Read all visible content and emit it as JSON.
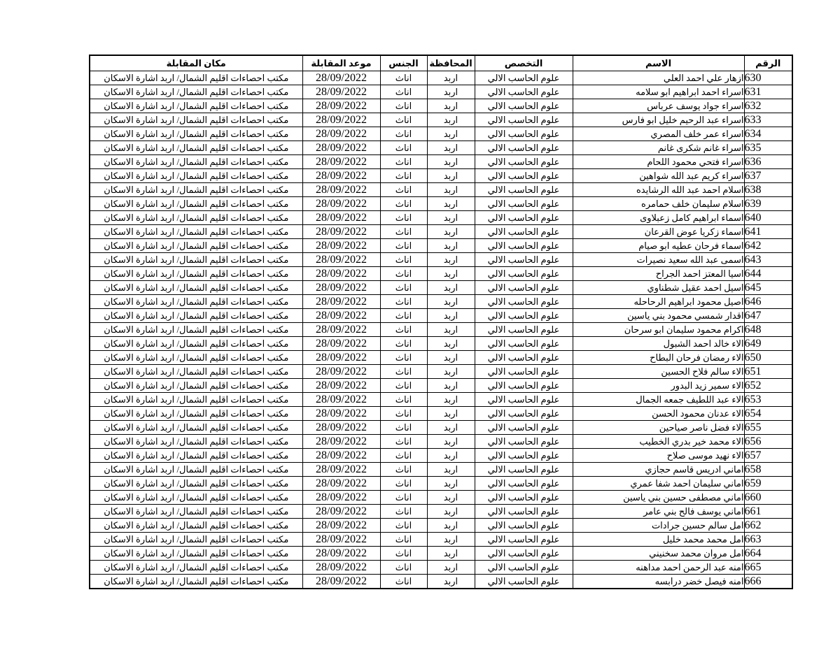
{
  "table": {
    "headers": [
      "الرقم",
      "الاسم",
      "التخصص",
      "المحافظة",
      "الجنس",
      "موعد المقابلة",
      "مكان المقابلة"
    ],
    "common": {
      "specialization": "علوم الحاسب الالي",
      "governorate": "اربد",
      "gender": "اناث",
      "interview_date": "28/09/2022",
      "interview_location": "مكتب احصاءات اقليم الشمال/ اربد اشارة الاسكان"
    },
    "rows": [
      [
        "630",
        "ازهار علي احمد العلي",
        "علوم الحاسب الالي",
        "اربد",
        "اناث",
        "28/09/2022",
        "مكتب احصاءات اقليم الشمال/ اربد اشارة الاسكان"
      ],
      [
        "631",
        "اسراء احمد ابراهيم ابو سلامه",
        "علوم الحاسب الالي",
        "اربد",
        "اناث",
        "28/09/2022",
        "مكتب احصاءات اقليم الشمال/ اربد اشارة الاسكان"
      ],
      [
        "632",
        "اسراء جواد يوسف عرباس",
        "علوم الحاسب الالي",
        "اربد",
        "اناث",
        "28/09/2022",
        "مكتب احصاءات اقليم الشمال/ اربد اشارة الاسكان"
      ],
      [
        "633",
        "اسراء عبد الرحيم خليل ابو فارس",
        "علوم الحاسب الالي",
        "اربد",
        "اناث",
        "28/09/2022",
        "مكتب احصاءات اقليم الشمال/ اربد اشارة الاسكان"
      ],
      [
        "634",
        "اسراء عمر خلف المصري",
        "علوم الحاسب الالي",
        "اربد",
        "اناث",
        "28/09/2022",
        "مكتب احصاءات اقليم الشمال/ اربد اشارة الاسكان"
      ],
      [
        "635",
        "اسراء غانم شكرى غانم",
        "علوم الحاسب الالي",
        "اربد",
        "اناث",
        "28/09/2022",
        "مكتب احصاءات اقليم الشمال/ اربد اشارة الاسكان"
      ],
      [
        "636",
        "اسراء فتحي محمود اللحام",
        "علوم الحاسب الالي",
        "اربد",
        "اناث",
        "28/09/2022",
        "مكتب احصاءات اقليم الشمال/ اربد اشارة الاسكان"
      ],
      [
        "637",
        "اسراء كريم عبد الله شواهين",
        "علوم الحاسب الالي",
        "اربد",
        "اناث",
        "28/09/2022",
        "مكتب احصاءات اقليم الشمال/ اربد اشارة الاسكان"
      ],
      [
        "638",
        "اسلام احمد عبد الله الرشايده",
        "علوم الحاسب الالي",
        "اربد",
        "اناث",
        "28/09/2022",
        "مكتب احصاءات اقليم الشمال/ اربد اشارة الاسكان"
      ],
      [
        "639",
        "اسلام سليمان خلف حمامره",
        "علوم الحاسب الالي",
        "اربد",
        "اناث",
        "28/09/2022",
        "مكتب احصاءات اقليم الشمال/ اربد اشارة الاسكان"
      ],
      [
        "640",
        "اسماء ابراهيم كامل زعبلاوى",
        "علوم الحاسب الالي",
        "اربد",
        "اناث",
        "28/09/2022",
        "مكتب احصاءات اقليم الشمال/ اربد اشارة الاسكان"
      ],
      [
        "641",
        "اسماء زكريا عوض القرعان",
        "علوم الحاسب الالي",
        "اربد",
        "اناث",
        "28/09/2022",
        "مكتب احصاءات اقليم الشمال/ اربد اشارة الاسكان"
      ],
      [
        "642",
        "اسماء فرحان عطيه ابو صيام",
        "علوم الحاسب الالي",
        "اربد",
        "اناث",
        "28/09/2022",
        "مكتب احصاءات اقليم الشمال/ اربد اشارة الاسكان"
      ],
      [
        "643",
        "اسمى عبد الله سعيد نصيرات",
        "علوم الحاسب الالي",
        "اربد",
        "اناث",
        "28/09/2022",
        "مكتب احصاءات اقليم الشمال/ اربد اشارة الاسكان"
      ],
      [
        "644",
        "اسيا المعتز احمد الجراح",
        "علوم الحاسب الالي",
        "اربد",
        "اناث",
        "28/09/2022",
        "مكتب احصاءات اقليم الشمال/ اربد اشارة الاسكان"
      ],
      [
        "645",
        "اسيل احمد عقيل شطناوي",
        "علوم الحاسب الالي",
        "اربد",
        "اناث",
        "28/09/2022",
        "مكتب احصاءات اقليم الشمال/ اربد اشارة الاسكان"
      ],
      [
        "646",
        "اصيل محمود ابراهيم الرحاحله",
        "علوم الحاسب الالي",
        "اربد",
        "اناث",
        "28/09/2022",
        "مكتب احصاءات اقليم الشمال/ اربد اشارة الاسكان"
      ],
      [
        "647",
        "اقدار شمسي محمود بني ياسين",
        "علوم الحاسب الالي",
        "اربد",
        "اناث",
        "28/09/2022",
        "مكتب احصاءات اقليم الشمال/ اربد اشارة الاسكان"
      ],
      [
        "648",
        "اكرام محمود سليمان ابو سرحان",
        "علوم الحاسب الالي",
        "اربد",
        "اناث",
        "28/09/2022",
        "مكتب احصاءات اقليم الشمال/ اربد اشارة الاسكان"
      ],
      [
        "649",
        "الاء خالد احمد الشبول",
        "علوم الحاسب الالي",
        "اربد",
        "اناث",
        "28/09/2022",
        "مكتب احصاءات اقليم الشمال/ اربد اشارة الاسكان"
      ],
      [
        "650",
        "الاء رمضان فرحان البطاح",
        "علوم الحاسب الالي",
        "اربد",
        "اناث",
        "28/09/2022",
        "مكتب احصاءات اقليم الشمال/ اربد اشارة الاسكان"
      ],
      [
        "651",
        "الاء سالم فلاح الحسين",
        "علوم الحاسب الالي",
        "اربد",
        "اناث",
        "28/09/2022",
        "مكتب احصاءات اقليم الشمال/ اربد اشارة الاسكان"
      ],
      [
        "652",
        "الاء سمير زيد البدور",
        "علوم الحاسب الالي",
        "اربد",
        "اناث",
        "28/09/2022",
        "مكتب احصاءات اقليم الشمال/ اربد اشارة الاسكان"
      ],
      [
        "653",
        "الاء عبد اللطيف جمعه الجمال",
        "علوم الحاسب الالي",
        "اربد",
        "اناث",
        "28/09/2022",
        "مكتب احصاءات اقليم الشمال/ اربد اشارة الاسكان"
      ],
      [
        "654",
        "الاء عدنان محمود الحسن",
        "علوم الحاسب الالي",
        "اربد",
        "اناث",
        "28/09/2022",
        "مكتب احصاءات اقليم الشمال/ اربد اشارة الاسكان"
      ],
      [
        "655",
        "الاء فضل ناصر صياحين",
        "علوم الحاسب الالي",
        "اربد",
        "اناث",
        "28/09/2022",
        "مكتب احصاءات اقليم الشمال/ اربد اشارة الاسكان"
      ],
      [
        "656",
        "الاء محمد خير بدري الخطيب",
        "علوم الحاسب الالي",
        "اربد",
        "اناث",
        "28/09/2022",
        "مكتب احصاءات اقليم الشمال/ اربد اشارة الاسكان"
      ],
      [
        "657",
        "الاء نهيد موسى صلاح",
        "علوم الحاسب الالي",
        "اربد",
        "اناث",
        "28/09/2022",
        "مكتب احصاءات اقليم الشمال/ اربد اشارة الاسكان"
      ],
      [
        "658",
        "اماني ادريس قاسم حجازي",
        "علوم الحاسب الالي",
        "اربد",
        "اناث",
        "28/09/2022",
        "مكتب احصاءات اقليم الشمال/ اربد اشارة الاسكان"
      ],
      [
        "659",
        "اماني سليمان احمد شفا عمري",
        "علوم الحاسب الالي",
        "اربد",
        "اناث",
        "28/09/2022",
        "مكتب احصاءات اقليم الشمال/ اربد اشارة الاسكان"
      ],
      [
        "660",
        "اماني مصطفى حسين بني ياسين",
        "علوم الحاسب الالي",
        "اربد",
        "اناث",
        "28/09/2022",
        "مكتب احصاءات اقليم الشمال/ اربد اشارة الاسكان"
      ],
      [
        "661",
        "اماني يوسف فالح بني عامر",
        "علوم الحاسب الالي",
        "اربد",
        "اناث",
        "28/09/2022",
        "مكتب احصاءات اقليم الشمال/ اربد اشارة الاسكان"
      ],
      [
        "662",
        "امل سالم حسين جرادات",
        "علوم الحاسب الالي",
        "اربد",
        "اناث",
        "28/09/2022",
        "مكتب احصاءات اقليم الشمال/ اربد اشارة الاسكان"
      ],
      [
        "663",
        "امل محمد محمد خليل",
        "علوم الحاسب الالي",
        "اربد",
        "اناث",
        "28/09/2022",
        "مكتب احصاءات اقليم الشمال/ اربد اشارة الاسكان"
      ],
      [
        "664",
        "امل مروان محمد سخنيني",
        "علوم الحاسب الالي",
        "اربد",
        "اناث",
        "28/09/2022",
        "مكتب احصاءات اقليم الشمال/ اربد اشارة الاسكان"
      ],
      [
        "665",
        "امنه عبد الرحمن احمد مداهنه",
        "علوم الحاسب الالي",
        "اربد",
        "اناث",
        "28/09/2022",
        "مكتب احصاءات اقليم الشمال/ اربد اشارة الاسكان"
      ],
      [
        "666",
        "امنه فيصل خضر درابسه",
        "علوم الحاسب الالي",
        "اربد",
        "اناث",
        "28/09/2022",
        "مكتب احصاءات اقليم الشمال/ اربد اشارة الاسكان"
      ]
    ]
  }
}
